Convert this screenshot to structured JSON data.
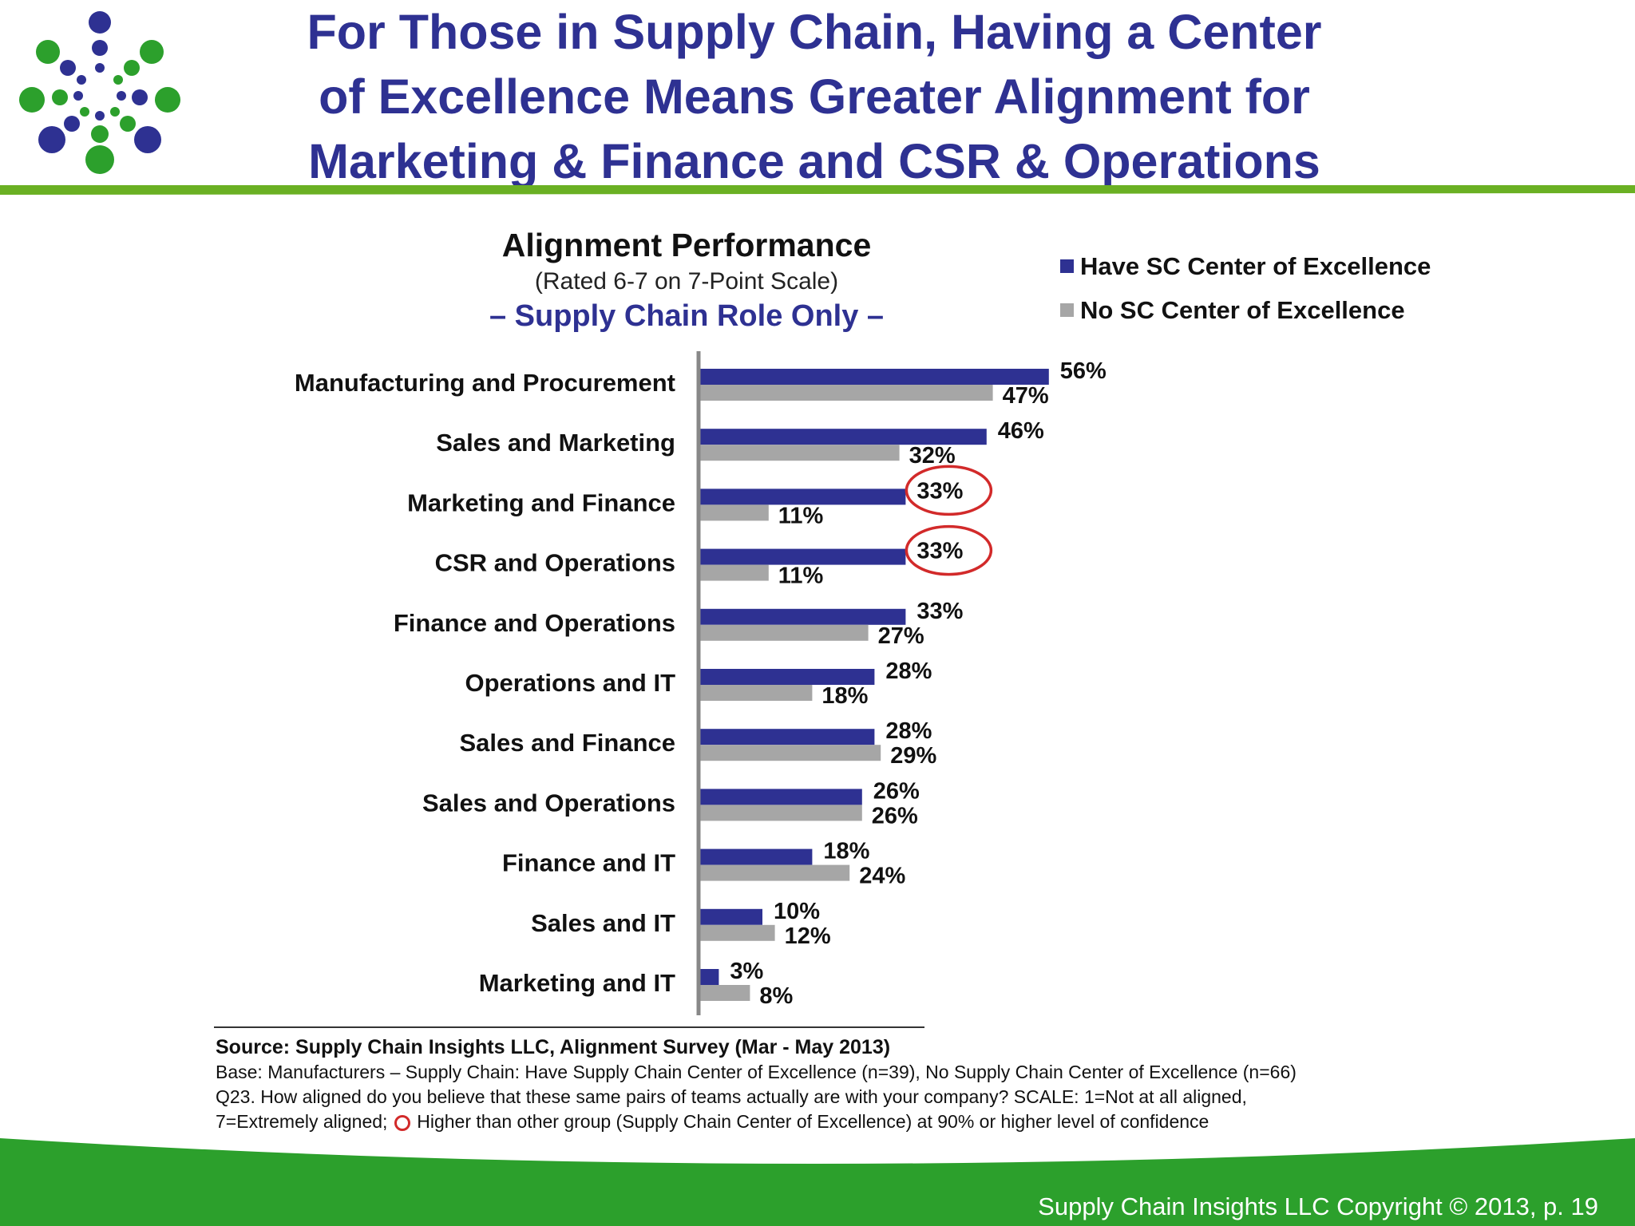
{
  "slide": {
    "title_lines": [
      "For Those in Supply Chain, Having a Center",
      "of Excellence Means Greater Alignment for",
      "Marketing & Finance and CSR & Operations"
    ],
    "copyright": "Supply Chain Insights LLC Copyright © 2013, p. 19"
  },
  "colors": {
    "title": "#2e3192",
    "have_coe": "#2e3192",
    "no_coe": "#a6a6a6",
    "green": "#2ca02c",
    "highlight_circle": "#d22a2a"
  },
  "chart_data": {
    "type": "bar",
    "orientation": "horizontal",
    "title": "Alignment Performance",
    "subtitle": "(Rated 6-7 on 7-Point Scale)",
    "subtitle2": "– Supply Chain Role Only –",
    "legend_position": "top-right",
    "grid": false,
    "xlim": [
      0,
      60
    ],
    "categories": [
      "Manufacturing and Procurement",
      "Sales and Marketing",
      "Marketing and Finance",
      "CSR and Operations",
      "Finance and Operations",
      "Operations and IT",
      "Sales and Finance",
      "Sales and Operations",
      "Finance and IT",
      "Sales and IT",
      "Marketing and IT"
    ],
    "series": [
      {
        "name": "Have SC Center of Excellence",
        "values": [
          56,
          46,
          33,
          33,
          33,
          28,
          28,
          26,
          18,
          10,
          3
        ],
        "labels": [
          "56%",
          "46%",
          "33%",
          "33%",
          "33%",
          "28%",
          "28%",
          "26%",
          "18%",
          "10%",
          "3%"
        ]
      },
      {
        "name": "No SC Center of Excellence",
        "values": [
          47,
          32,
          11,
          11,
          27,
          18,
          29,
          26,
          24,
          12,
          8
        ],
        "labels": [
          "47%",
          "32%",
          "11%",
          "11%",
          "27%",
          "18%",
          "29%",
          "26%",
          "24%",
          "12%",
          "8%"
        ]
      }
    ],
    "highlighted_categories": [
      2,
      3
    ]
  },
  "source": {
    "line1": "Source:  Supply Chain Insights LLC, Alignment Survey  (Mar - May 2013)",
    "line2": "Base:  Manufacturers   – Supply Chain:  Have Supply Chain Center of Excellence (n=39), No Supply Chain Center of Excellence (n=66)",
    "line3": "Q23. How aligned do you believe that these same pairs of teams actually are with your company?  SCALE: 1=Not at all aligned,",
    "line4_before": "7=Extremely aligned;",
    "line4_after": "Higher than other group (Supply Chain  Center of Excellence) at 90% or higher level of confidence"
  }
}
